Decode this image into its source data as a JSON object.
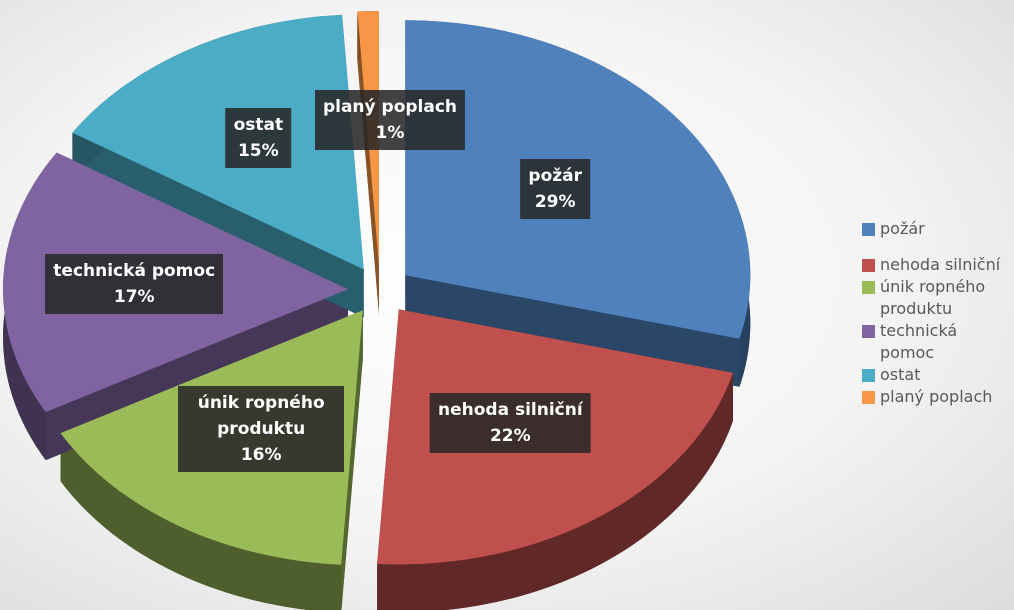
{
  "chart_data": {
    "type": "pie",
    "categories": [
      "požár",
      "nehoda silniční",
      "únik ropného produktu",
      "technická pomoc",
      "ostat",
      "planý poplach"
    ],
    "values": [
      29,
      22,
      16,
      17,
      15,
      1
    ],
    "value_labels": [
      "29%",
      "22%",
      "16%",
      "17%",
      "15%",
      "1%"
    ],
    "colors": [
      "#4f81bd",
      "#c0504d",
      "#9bbb59",
      "#8064a2",
      "#4bacc6",
      "#f79646"
    ],
    "legend": "right"
  }
}
